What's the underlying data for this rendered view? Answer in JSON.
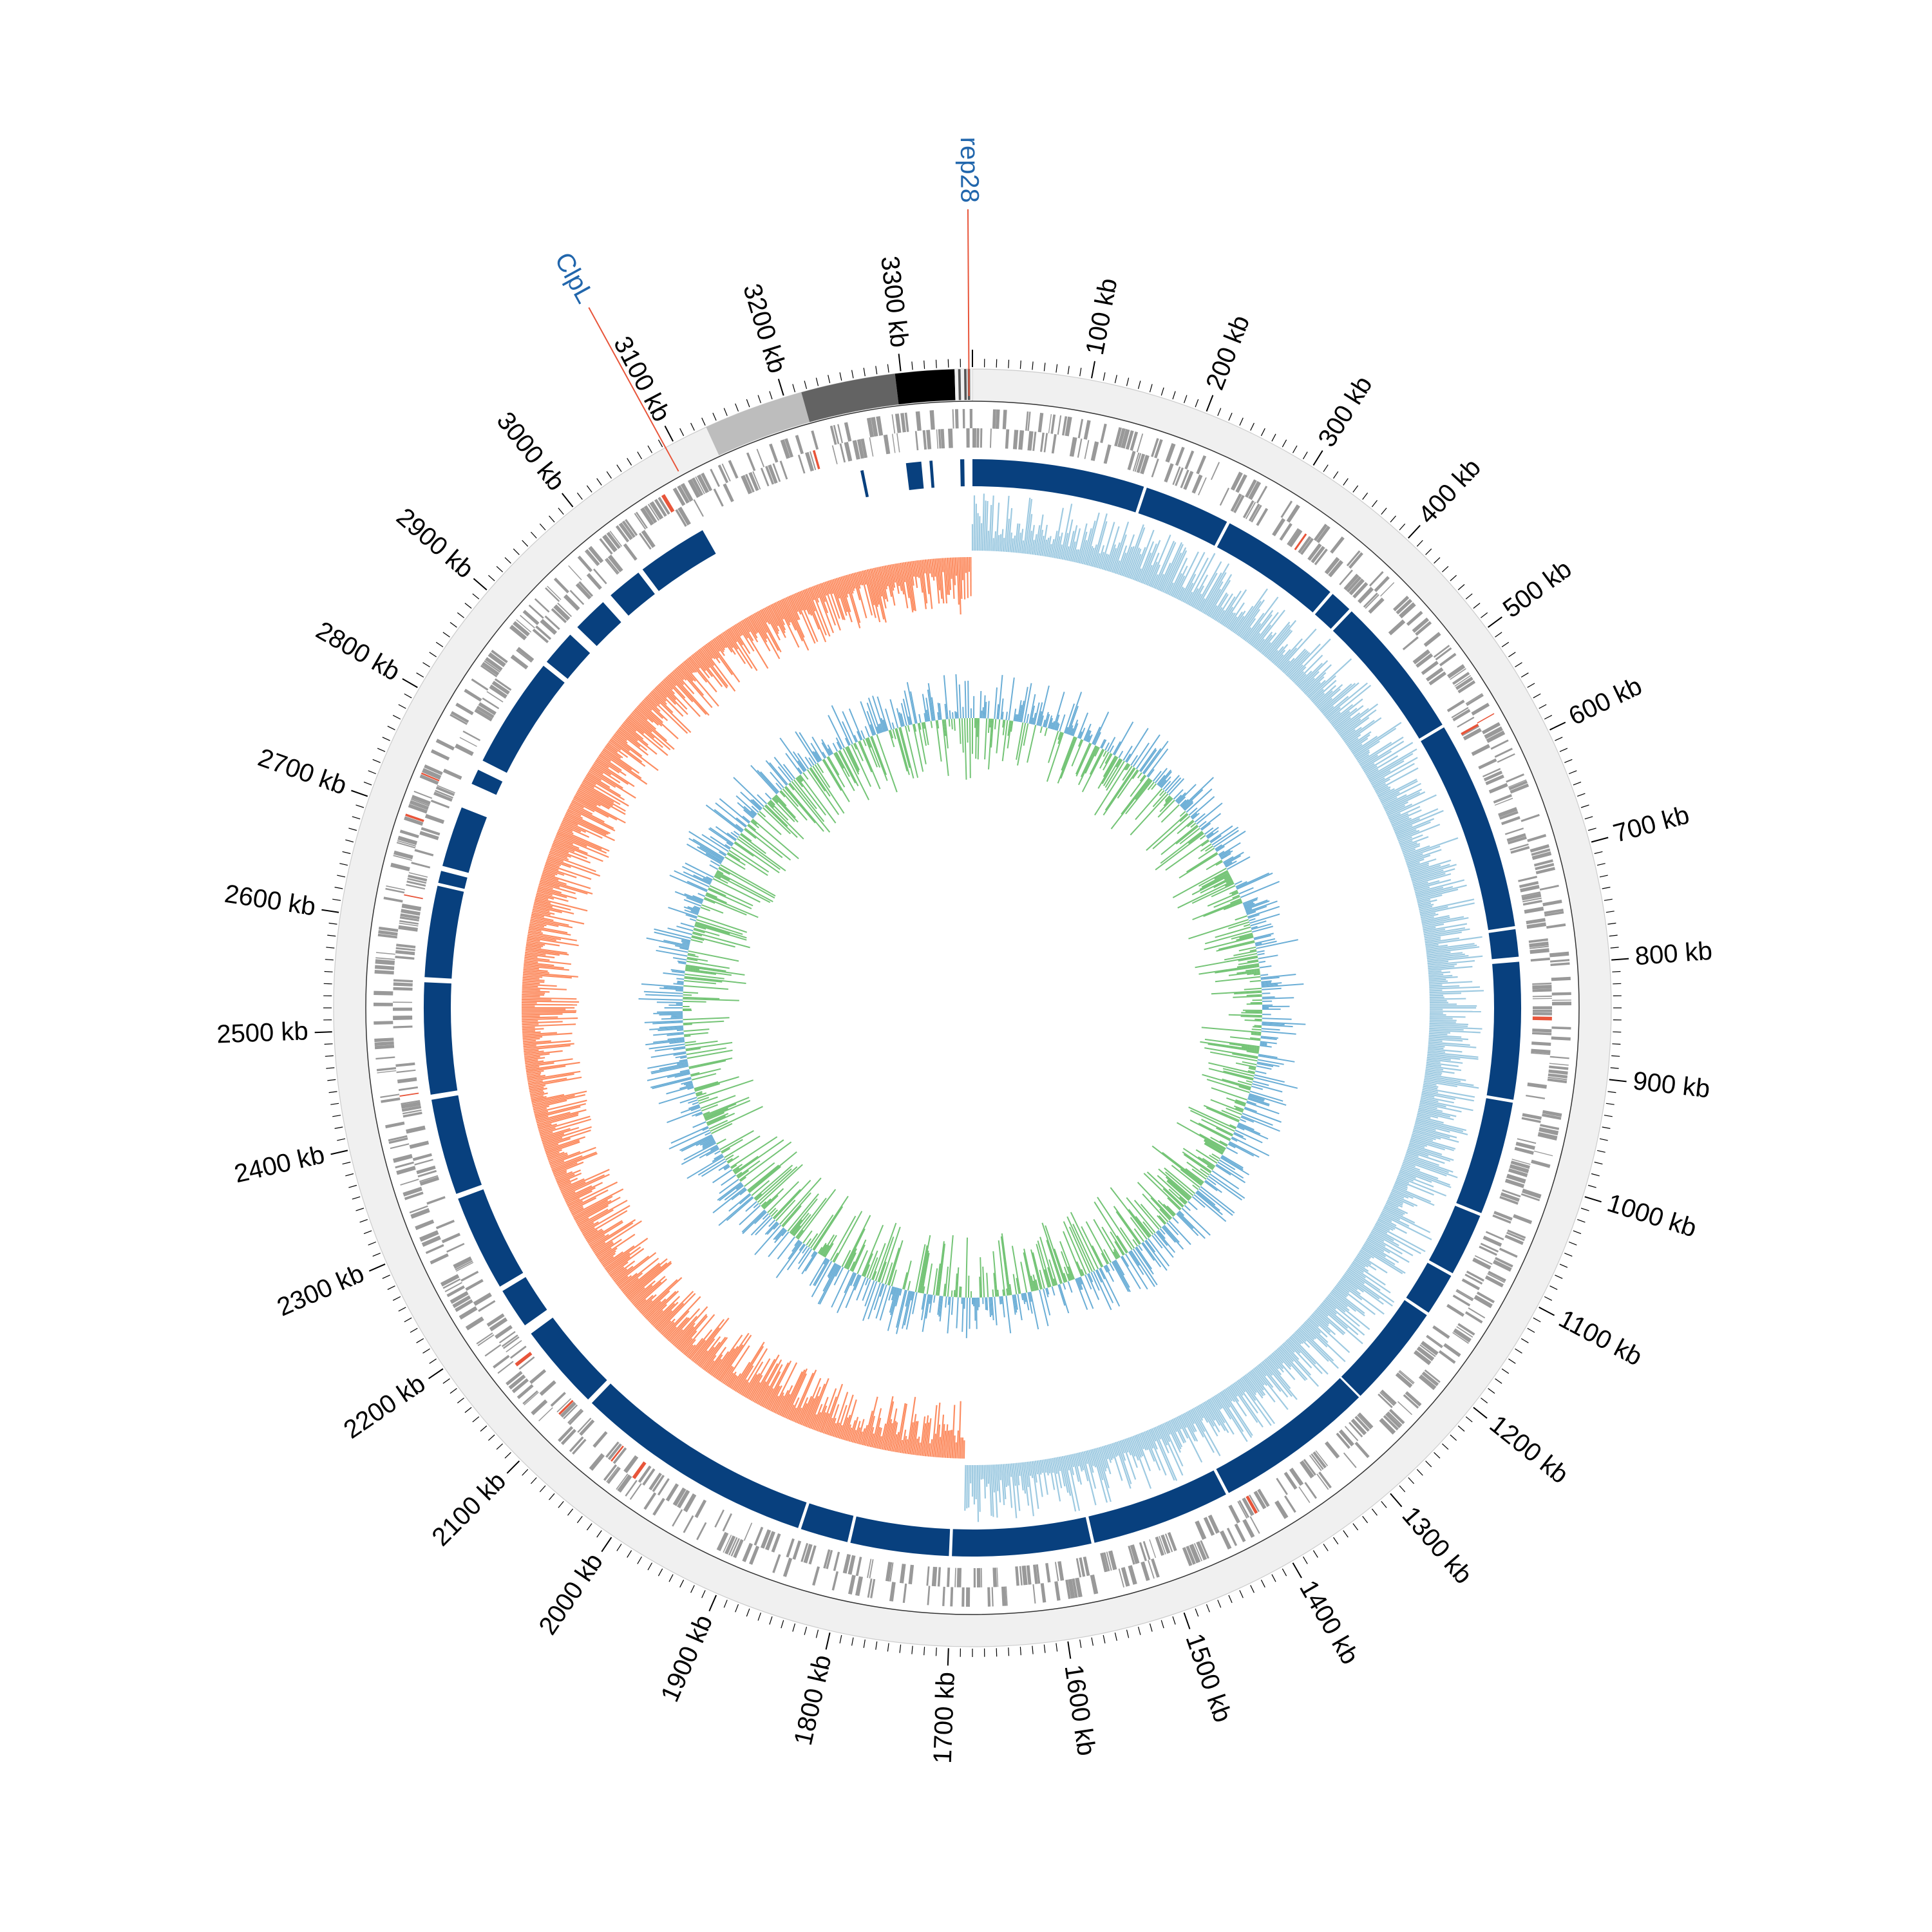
{
  "genome": {
    "length_kb": 3360,
    "unit": "kb"
  },
  "tick_labels_kb": [
    100,
    200,
    300,
    400,
    500,
    600,
    700,
    800,
    900,
    1000,
    1100,
    1200,
    1300,
    1400,
    1500,
    1600,
    1700,
    1800,
    1900,
    2000,
    2100,
    2200,
    2300,
    2400,
    2500,
    2600,
    2700,
    2800,
    2900,
    3000,
    3100,
    3200,
    3300
  ],
  "tick_suffix": " kb",
  "annotations": [
    {
      "label": "rep28",
      "position_kb": 3357,
      "line_color": "#e8553a",
      "label_color": "#2166ac"
    },
    {
      "label": "ClpL",
      "position_kb": 3092,
      "line_color": "#e8553a",
      "label_color": "#2166ac"
    }
  ],
  "contigs_kb": [
    {
      "start": 3130,
      "end": 3215,
      "color": "#bdbdbd"
    },
    {
      "start": 3215,
      "end": 3295,
      "color": "#636363"
    },
    {
      "start": 3295,
      "end": 3345,
      "color": "#000000"
    },
    {
      "start": 3345,
      "end": 3360,
      "color": "#f0f0f0"
    }
  ],
  "reference_hits_kb": [
    [
      0,
      170
    ],
    [
      173,
      258
    ],
    [
      261,
      380
    ],
    [
      383,
      405
    ],
    [
      408,
      550
    ],
    [
      553,
      760
    ],
    [
      763,
      790
    ],
    [
      795,
      930
    ],
    [
      933,
      1045
    ],
    [
      1048,
      1110
    ],
    [
      1113,
      1155
    ],
    [
      1158,
      1260
    ],
    [
      1262,
      1420
    ],
    [
      1423,
      1560
    ],
    [
      1563,
      1700
    ],
    [
      1703,
      1800
    ],
    [
      1803,
      1850
    ],
    [
      1853,
      2090
    ],
    [
      2095,
      2180
    ],
    [
      2190,
      2230
    ],
    [
      2235,
      2330
    ],
    [
      2335,
      2430
    ],
    [
      2435,
      2545
    ],
    [
      2550,
      2640
    ],
    [
      2643,
      2655
    ],
    [
      2660,
      2720
    ],
    [
      2745,
      2760
    ],
    [
      2770,
      2880
    ],
    [
      2885,
      2920
    ],
    [
      2930,
      2965
    ],
    [
      2975,
      3010
    ],
    [
      3015,
      3085
    ],
    [
      3250,
      3253
    ],
    [
      3295,
      3310
    ],
    [
      3318,
      3321
    ],
    [
      3348,
      3352
    ]
  ],
  "colors": {
    "backbone": "#f0f0f0",
    "genes": "#999999",
    "reference_hits": "#08407e",
    "gc_skew_positive": "#9ecae1",
    "gc_skew_negative": "#fc8d62",
    "gc_content_blue": "#6baed6",
    "gc_content_green": "#74c476",
    "annotation_line": "#e8553a",
    "label_blue": "#2166ac"
  }
}
